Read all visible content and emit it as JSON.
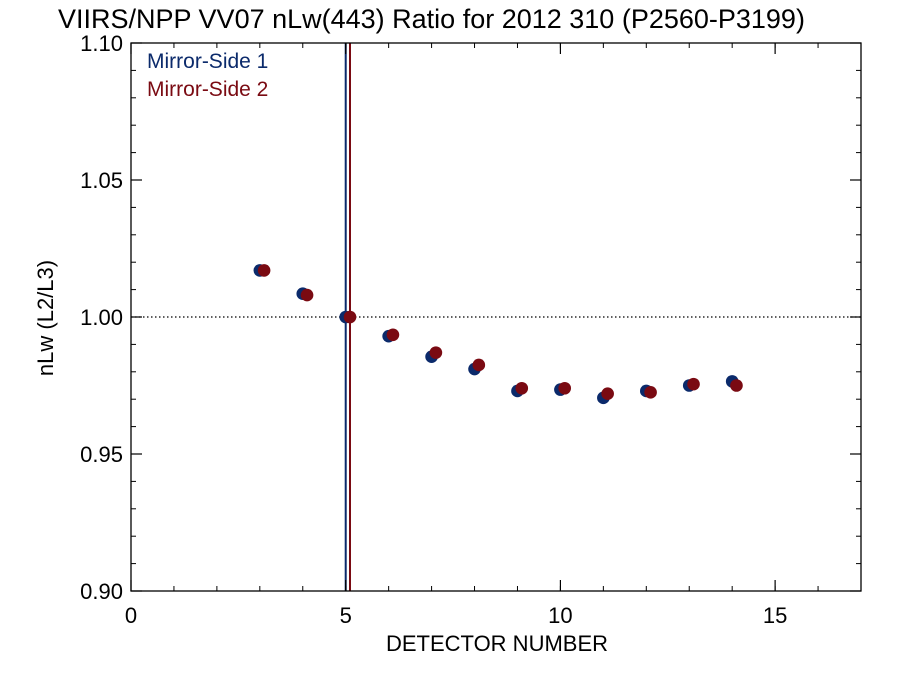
{
  "chart_data": {
    "type": "scatter",
    "title": "VIIRS/NPP VV07 nLw(443) Ratio for 2012 310 (P2560-P3199)",
    "xlabel": "DETECTOR NUMBER",
    "ylabel": "nLw (L2/L3)",
    "xlim": [
      0,
      17
    ],
    "ylim": [
      0.9,
      1.1
    ],
    "x_ticks": [
      0,
      5,
      10,
      15
    ],
    "x_tick_labels": [
      "0",
      "5",
      "10",
      "15"
    ],
    "y_ticks": [
      0.9,
      0.95,
      1.0,
      1.05,
      1.1
    ],
    "y_tick_labels": [
      "0.90",
      "0.95",
      "1.00",
      "1.05",
      "1.10"
    ],
    "reference_line_y": 1.0,
    "reference_line_style": "dotted",
    "vertical_lines": [
      {
        "x": 5.0,
        "color": "#0b2a6b"
      },
      {
        "x": 5.1,
        "color": "#7a0a12"
      }
    ],
    "legend_position": "top-left",
    "series": [
      {
        "name": "Mirror-Side 1",
        "color": "#0b2a6b",
        "x": [
          3,
          4,
          5,
          6,
          7,
          8,
          9,
          10,
          11,
          12,
          13,
          14
        ],
        "values": [
          1.017,
          1.0085,
          1.0,
          0.993,
          0.9855,
          0.981,
          0.973,
          0.9735,
          0.9705,
          0.973,
          0.975,
          0.9765
        ]
      },
      {
        "name": "Mirror-Side 2",
        "color": "#7a0a12",
        "x": [
          3.1,
          4.1,
          5.1,
          6.1,
          7.1,
          8.1,
          9.1,
          10.1,
          11.1,
          12.1,
          13.1,
          14.1
        ],
        "values": [
          1.017,
          1.008,
          1.0,
          0.9935,
          0.987,
          0.9825,
          0.974,
          0.974,
          0.972,
          0.9725,
          0.9755,
          0.975
        ]
      }
    ]
  }
}
